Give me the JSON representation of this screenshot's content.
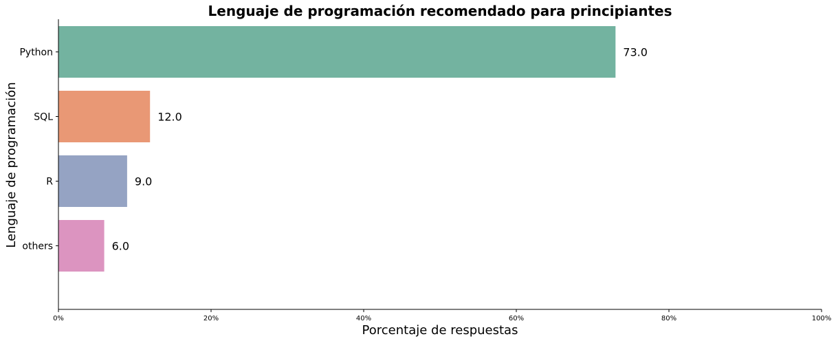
{
  "chart_data": {
    "type": "bar",
    "orientation": "horizontal",
    "title": "Lenguaje de programación recomendado para principiantes",
    "xlabel": "Porcentaje de respuestas",
    "ylabel": "Lenguaje de programación",
    "categories": [
      "Python",
      "SQL",
      "R",
      "others"
    ],
    "values": [
      73.0,
      12.0,
      9.0,
      6.0
    ],
    "value_labels": [
      "73.0",
      "12.0",
      "9.0",
      "6.0"
    ],
    "colors": [
      "#73b3a0",
      "#e99875",
      "#95a3c3",
      "#dc94c0"
    ],
    "xlim": [
      0,
      100
    ],
    "xticks": [
      0,
      20,
      40,
      60,
      80,
      100
    ],
    "xtick_labels": [
      "0%",
      "20%",
      "40%",
      "60%",
      "80%",
      "100%"
    ],
    "grid": false,
    "legend": false
  }
}
